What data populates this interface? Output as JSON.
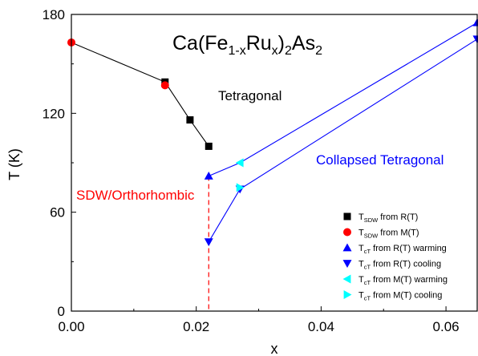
{
  "chart_data": {
    "type": "scatter",
    "xlabel": "x",
    "ylabel": "T (K)",
    "xlim": [
      0.0,
      0.065
    ],
    "ylim": [
      0,
      180
    ],
    "xticks": [
      "0.00",
      "0.02",
      "0.04",
      "0.06"
    ],
    "xtick_values": [
      0.0,
      0.02,
      0.04,
      0.06
    ],
    "yticks": [
      "0",
      "60",
      "120",
      "180"
    ],
    "ytick_values": [
      0,
      60,
      120,
      180
    ],
    "grid": false,
    "legend_position": "bottom-right",
    "annotations": {
      "formula": {
        "base1": "Ca(Fe",
        "sub1": "1-x",
        "base2": "Ru",
        "sub2": "x",
        "base3": ")",
        "sub3": "2",
        "base4": "As",
        "sub4": "2"
      },
      "tetragonal": "Tetragonal",
      "collapsed": "Collapsed Tetragonal",
      "sdw": "SDW/Orthorhombic"
    },
    "series": [
      {
        "name": "T_SDW from R(T)",
        "label_main": "T",
        "label_sub": "SDW",
        "label_rest": " from R(T)",
        "marker": "square",
        "color": "#000000",
        "x": [
          0.015,
          0.019,
          0.022
        ],
        "y": [
          139,
          116,
          100
        ]
      },
      {
        "name": "T_SDW from M(T)",
        "label_main": "T",
        "label_sub": "SDW",
        "label_rest": " from M(T)",
        "marker": "circle",
        "color": "#ff0000",
        "x": [
          0.0,
          0.015
        ],
        "y": [
          163,
          137
        ]
      },
      {
        "name": "T_cT from R(T) warming",
        "label_main": "T",
        "label_sub": "cT",
        "label_rest": " from R(T) warming",
        "marker": "triangle-up",
        "color": "#0000ff",
        "x": [
          0.022,
          0.065
        ],
        "y": [
          82,
          175
        ]
      },
      {
        "name": "T_cT from R(T) cooling",
        "label_main": "T",
        "label_sub": "cT",
        "label_rest": " from R(T) cooling",
        "marker": "triangle-down",
        "color": "#0000ff",
        "x": [
          0.022,
          0.027,
          0.065
        ],
        "y": [
          42,
          74,
          165
        ]
      },
      {
        "name": "T_cT from M(T) warming",
        "label_main": "T",
        "label_sub": "cT",
        "label_rest": " from M(T) warming",
        "marker": "triangle-left",
        "color": "#00ffff",
        "x": [
          0.027
        ],
        "y": [
          90
        ]
      },
      {
        "name": "T_cT from M(T) cooling",
        "label_main": "T",
        "label_sub": "cT",
        "label_rest": " from M(T) cooling",
        "marker": "triangle-right",
        "color": "#00ffff",
        "x": [
          0.027
        ],
        "y": [
          75
        ]
      }
    ],
    "lines": [
      {
        "color": "#000000",
        "x": [
          0.0,
          0.015,
          0.019,
          0.022
        ],
        "y": [
          163,
          139,
          116,
          100
        ]
      },
      {
        "color": "#0000ff",
        "x": [
          0.022,
          0.027,
          0.065
        ],
        "y": [
          82,
          90,
          175
        ]
      },
      {
        "color": "#0000ff",
        "x": [
          0.022,
          0.027,
          0.065
        ],
        "y": [
          42,
          74,
          165
        ]
      }
    ],
    "boundary": {
      "color": "#ff0000",
      "x": 0.022,
      "y_from": 0,
      "y_to": 82
    }
  }
}
